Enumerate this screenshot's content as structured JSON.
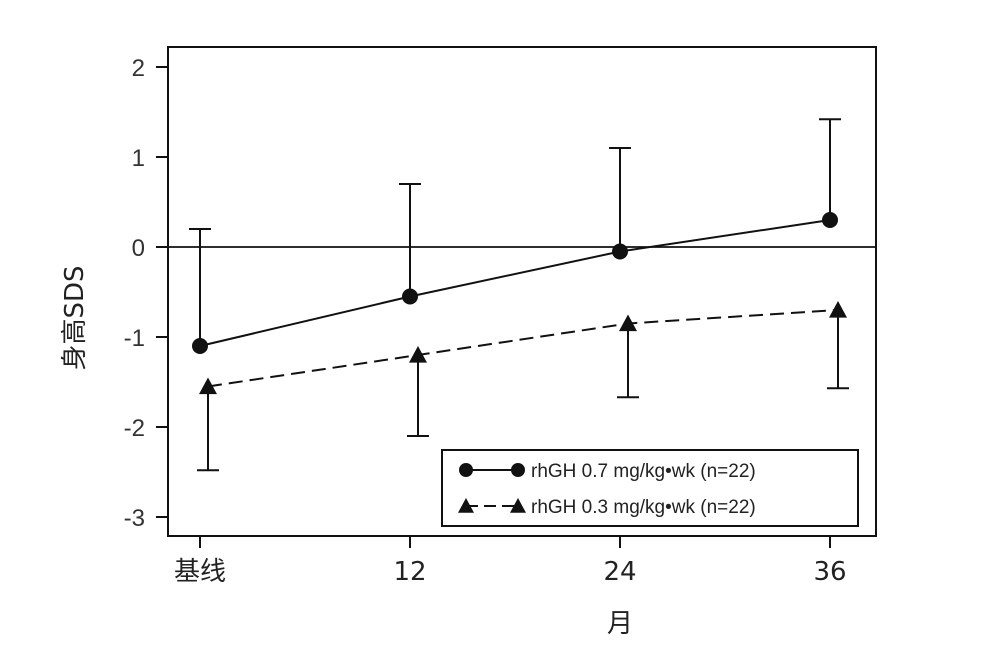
{
  "chart_data": {
    "type": "line",
    "categories": [
      "基线",
      "12",
      "24",
      "36"
    ],
    "xlabel": "月",
    "ylabel": "身高SDS",
    "ylim": [
      -3,
      2
    ],
    "yticks": [
      2,
      1,
      0,
      -1,
      -2,
      -3
    ],
    "reference_line": 0,
    "series": [
      {
        "name": "rhGH 0.7 mg/kg•wk (n=22)",
        "marker": "circle",
        "line": "solid",
        "values": [
          -1.1,
          -0.55,
          -0.05,
          0.3
        ],
        "error_upper": [
          0.2,
          0.7,
          1.1,
          1.42
        ],
        "error_lower": [
          null,
          null,
          null,
          null
        ]
      },
      {
        "name": "rhGH 0.3 mg/kg•wk (n=22)",
        "marker": "triangle",
        "line": "dashed",
        "values": [
          -1.55,
          -1.2,
          -0.85,
          -0.7
        ],
        "error_upper": [
          null,
          null,
          null,
          null
        ],
        "error_lower": [
          -2.48,
          -2.1,
          -1.67,
          -1.57
        ]
      }
    ],
    "legend": "bottom-right",
    "grid": false
  }
}
